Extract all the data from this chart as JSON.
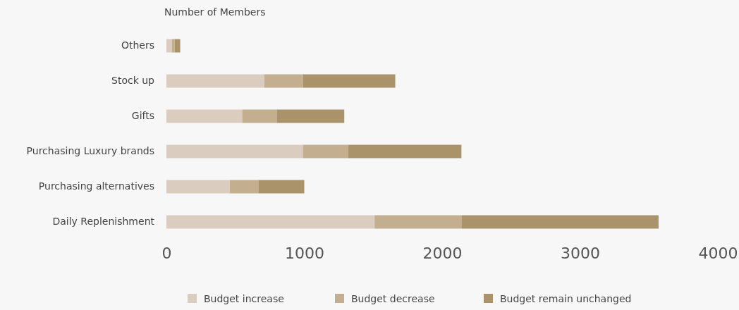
{
  "chart_data": {
    "type": "bar",
    "orientation": "horizontal",
    "stacked": true,
    "title": "Number of Members",
    "categories": [
      "Others",
      "Stock up",
      "Gifts",
      "Purchasing Luxury brands",
      "Purchasing alternatives",
      "Daily Replenishment"
    ],
    "series": [
      {
        "name": "Budget increase",
        "color": "#dacdbf",
        "values": [
          40,
          710,
          550,
          990,
          460,
          1510
        ]
      },
      {
        "name": "Budget decrease",
        "color": "#c3af90",
        "values": [
          20,
          280,
          250,
          330,
          210,
          630
        ]
      },
      {
        "name": "Budget remain unchanged",
        "color": "#aa936b",
        "values": [
          40,
          670,
          490,
          820,
          330,
          1430
        ]
      }
    ],
    "xlim": [
      0,
      4000
    ],
    "xticks": [
      0,
      1000,
      2000,
      3000,
      4000
    ],
    "grid": false,
    "legend": "bottom"
  }
}
